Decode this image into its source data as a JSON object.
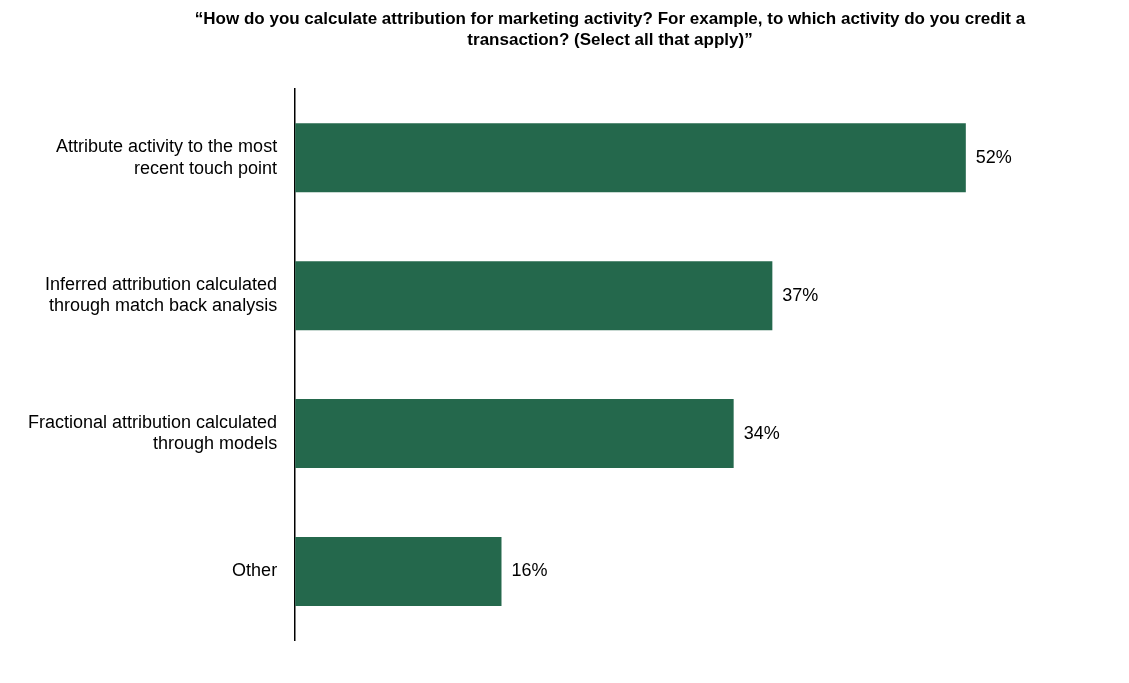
{
  "chart_data": {
    "type": "bar",
    "orientation": "horizontal",
    "title": "“How do you calculate attribution for marketing activity? For example, to which activity do you credit a transaction? (Select all that apply)”",
    "categories": [
      "Attribute activity to the most recent touch point",
      "Inferred attribution calculated through match back analysis",
      "Fractional attribution calculated through models",
      "Other"
    ],
    "values": [
      52,
      37,
      34,
      16
    ],
    "color": "#24684c",
    "value_labels": [
      "52%",
      "37%",
      "34%",
      "16%"
    ],
    "grid": false,
    "legend": false
  }
}
